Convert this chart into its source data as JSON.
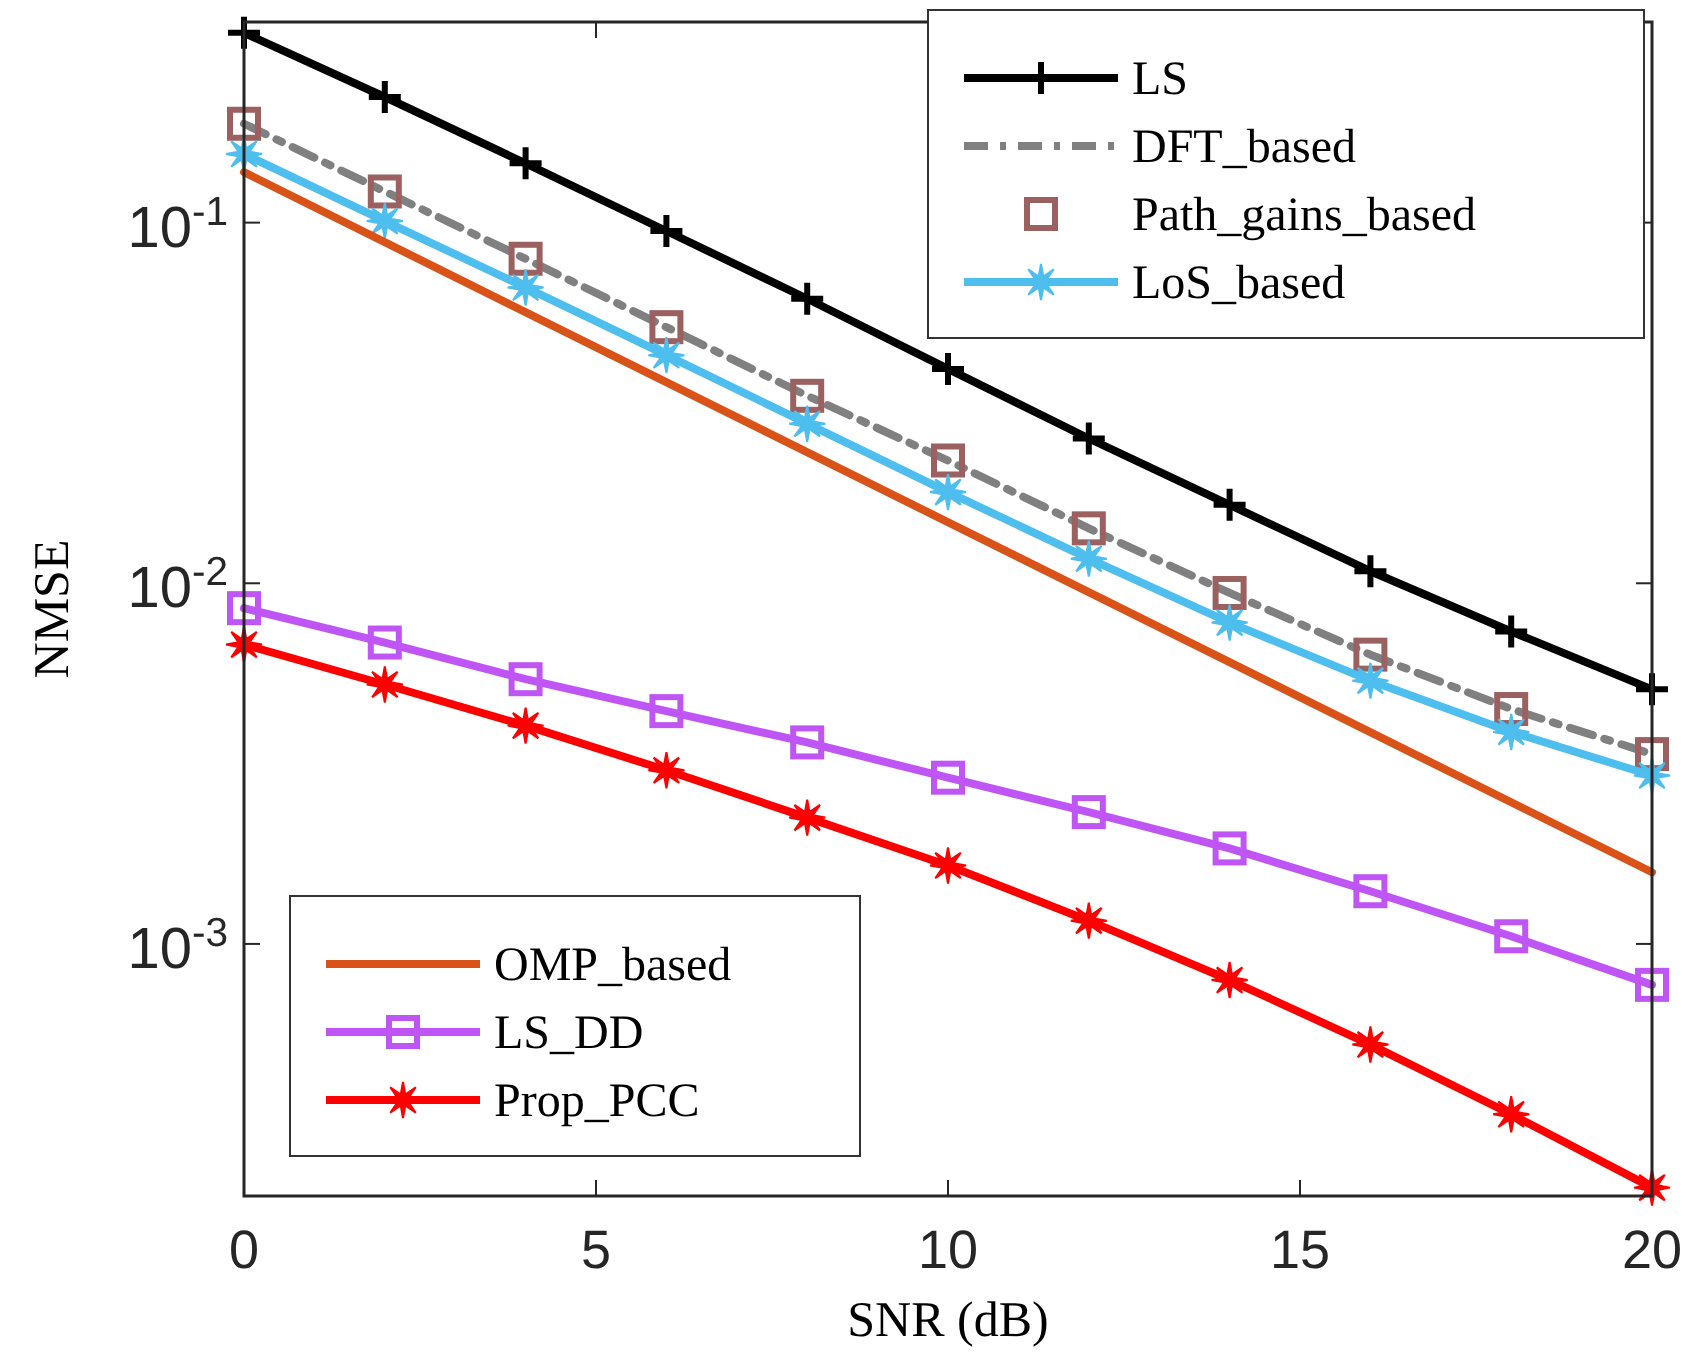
{
  "chart_data": {
    "type": "line",
    "xlabel": "SNR (dB)",
    "ylabel": "NMSE",
    "log": "y",
    "grid": false,
    "legend": [
      "top right",
      "bottom left"
    ],
    "x": [
      0,
      2,
      4,
      6,
      8,
      10,
      12,
      14,
      16,
      18,
      20
    ],
    "xlim": [
      0,
      20
    ],
    "xticks": [
      0,
      5,
      10,
      15,
      20
    ],
    "ylim": [
      0.0002,
      0.36
    ],
    "yticks": [
      {
        "value": 0.001,
        "label": "10$^{-3}$"
      },
      {
        "value": 0.01,
        "label": "10$^{-2}$"
      },
      {
        "value": 0.1,
        "label": "10$^{-1}$"
      }
    ],
    "series": [
      {
        "name": "LS",
        "color": "#000000",
        "marker": "cross",
        "line_style": "solid",
        "values": [
          0.336,
          0.223,
          0.146,
          0.0948,
          0.0615,
          0.0393,
          0.0252,
          0.0165,
          0.0108,
          0.00735,
          0.00508
        ]
      },
      {
        "name": "DFT_based",
        "color": "#808080",
        "marker": "none",
        "line_style": "dashed",
        "values": [
          0.188,
          0.122,
          0.0794,
          0.0513,
          0.0331,
          0.0219,
          0.0142,
          0.0094,
          0.00634,
          0.00448,
          0.00336
        ]
      },
      {
        "name": "Path_gains_based",
        "type": "scatter",
        "color": "#9b6060",
        "marker": "square",
        "values": [
          0.188,
          0.122,
          0.0794,
          0.0513,
          0.0331,
          0.0219,
          0.0142,
          0.0094,
          0.00634,
          0.00448,
          0.00336
        ]
      },
      {
        "name": "LoS_based",
        "color": "#4dbeee",
        "marker": "star",
        "line_style": "solid",
        "values": [
          0.155,
          0.101,
          0.0661,
          0.0429,
          0.0277,
          0.0179,
          0.0117,
          0.00778,
          0.00537,
          0.00387,
          0.00293
        ]
      },
      {
        "name": "OMP_based",
        "color": "#d95319",
        "marker": "none",
        "line_style": "solid",
        "x": [
          0,
          20
        ],
        "values": [
          0.138,
          0.00158
        ]
      },
      {
        "name": "LS_DD",
        "color": "#bf55f5",
        "marker": "square",
        "line_style": "solid",
        "values": [
          0.00853,
          0.00685,
          0.00542,
          0.00442,
          0.00362,
          0.00289,
          0.00232,
          0.00184,
          0.0014,
          0.00105,
          0.00077
        ]
      },
      {
        "name": "Prop_PCC",
        "color": "#ff0000",
        "marker": "star",
        "line_style": "solid",
        "values": [
          0.00676,
          0.00524,
          0.00403,
          0.00303,
          0.00224,
          0.00165,
          0.00116,
          0.000794,
          0.000526,
          0.000337,
          0.000211
        ]
      }
    ]
  }
}
